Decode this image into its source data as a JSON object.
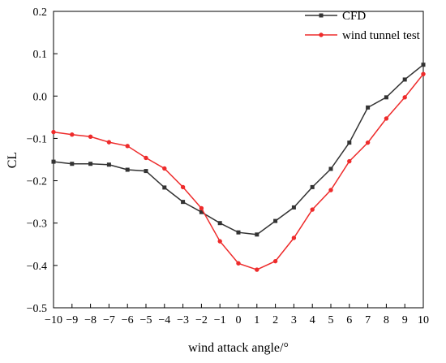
{
  "chart_data": {
    "type": "line",
    "title": "",
    "xlabel": "wind attack angle/°",
    "ylabel": "CL",
    "xlim": [
      -10,
      10
    ],
    "ylim": [
      -0.5,
      0.2
    ],
    "x_ticks": [
      -10,
      -9,
      -8,
      -7,
      -6,
      -5,
      -4,
      -3,
      -2,
      -1,
      0,
      1,
      2,
      3,
      4,
      5,
      6,
      7,
      8,
      9,
      10
    ],
    "x_tick_labels": [
      "−10",
      "−9",
      "−8",
      "−7",
      "−6",
      "−5",
      "−4",
      "−3",
      "−2",
      "−1",
      "0",
      "1",
      "2",
      "3",
      "4",
      "5",
      "6",
      "7",
      "8",
      "9",
      "10"
    ],
    "y_ticks": [
      -0.5,
      -0.4,
      -0.3,
      -0.2,
      -0.1,
      0.0,
      0.1,
      0.2
    ],
    "y_tick_labels": [
      "−0.5",
      "−0.4",
      "−0.3",
      "−0.2",
      "−0.1",
      "0.0",
      "0.1",
      "0.2"
    ],
    "grid": false,
    "legend_position": "top-right",
    "x": [
      -10,
      -9,
      -8,
      -7,
      -6,
      -5,
      -4,
      -3,
      -2,
      -1,
      0,
      1,
      2,
      3,
      4,
      5,
      6,
      7,
      8,
      9,
      10
    ],
    "series": [
      {
        "name": "CFD",
        "color": "#333333",
        "marker": "square",
        "values": [
          -0.155,
          -0.16,
          -0.16,
          -0.162,
          -0.174,
          -0.177,
          -0.216,
          -0.25,
          -0.274,
          -0.3,
          -0.322,
          -0.327,
          -0.295,
          -0.263,
          -0.215,
          -0.172,
          -0.11,
          -0.027,
          -0.003,
          0.039,
          0.074
        ]
      },
      {
        "name": "wind tunnel test",
        "color": "#ee2b2b",
        "marker": "circle",
        "values": [
          -0.085,
          -0.091,
          -0.096,
          -0.109,
          -0.118,
          -0.146,
          -0.171,
          -0.215,
          -0.265,
          -0.343,
          -0.395,
          -0.41,
          -0.39,
          -0.335,
          -0.268,
          -0.222,
          -0.154,
          -0.11,
          -0.053,
          -0.003,
          0.052
        ]
      }
    ]
  }
}
